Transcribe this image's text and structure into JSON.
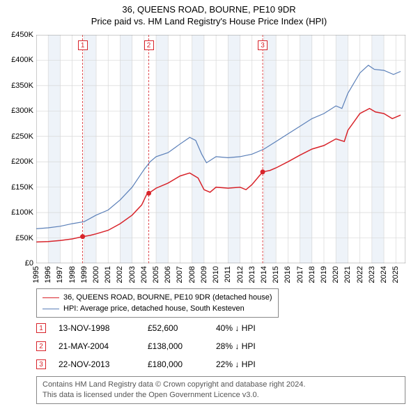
{
  "title": "36, QUEENS ROAD, BOURNE, PE10 9DR",
  "subtitle": "Price paid vs. HM Land Registry's House Price Index (HPI)",
  "chart": {
    "type": "line",
    "x_min": 1995,
    "x_max": 2025.8,
    "y_min": 0,
    "y_max": 450000,
    "y_ticks": [
      0,
      50000,
      100000,
      150000,
      200000,
      250000,
      300000,
      350000,
      400000,
      450000
    ],
    "y_tick_labels": [
      "£0",
      "£50K",
      "£100K",
      "£150K",
      "£200K",
      "£250K",
      "£300K",
      "£350K",
      "£400K",
      "£450K"
    ],
    "x_ticks": [
      1995,
      1996,
      1997,
      1998,
      1999,
      2000,
      2001,
      2002,
      2003,
      2004,
      2005,
      2006,
      2007,
      2008,
      2009,
      2010,
      2011,
      2012,
      2013,
      2014,
      2015,
      2016,
      2017,
      2018,
      2019,
      2020,
      2021,
      2022,
      2023,
      2024,
      2025
    ],
    "grid_color": "#d7d7d7",
    "shaded_color": "#eef3f9",
    "shaded_years": [
      1996,
      1999,
      2002,
      2005,
      2008,
      2011,
      2014,
      2017,
      2020,
      2023
    ],
    "background_color": "#ffffff",
    "series": [
      {
        "name": "hpi",
        "color": "#5a7fb8",
        "width": 1.2,
        "points": [
          [
            1995,
            68000
          ],
          [
            1996,
            70000
          ],
          [
            1997,
            73000
          ],
          [
            1998,
            78000
          ],
          [
            1999,
            82000
          ],
          [
            2000,
            95000
          ],
          [
            2001,
            105000
          ],
          [
            2002,
            125000
          ],
          [
            2003,
            150000
          ],
          [
            2004,
            185000
          ],
          [
            2004.5,
            200000
          ],
          [
            2005,
            210000
          ],
          [
            2006,
            218000
          ],
          [
            2007,
            235000
          ],
          [
            2007.8,
            248000
          ],
          [
            2008.3,
            242000
          ],
          [
            2008.8,
            215000
          ],
          [
            2009.2,
            198000
          ],
          [
            2010,
            210000
          ],
          [
            2011,
            208000
          ],
          [
            2012,
            210000
          ],
          [
            2013,
            215000
          ],
          [
            2014,
            225000
          ],
          [
            2015,
            240000
          ],
          [
            2016,
            255000
          ],
          [
            2017,
            270000
          ],
          [
            2018,
            285000
          ],
          [
            2019,
            295000
          ],
          [
            2020,
            310000
          ],
          [
            2020.5,
            305000
          ],
          [
            2021,
            335000
          ],
          [
            2022,
            375000
          ],
          [
            2022.7,
            390000
          ],
          [
            2023.2,
            382000
          ],
          [
            2024,
            380000
          ],
          [
            2024.8,
            372000
          ],
          [
            2025.4,
            378000
          ]
        ]
      },
      {
        "name": "property",
        "color": "#d8232a",
        "width": 1.5,
        "points": [
          [
            1995,
            42000
          ],
          [
            1996,
            43000
          ],
          [
            1997,
            45000
          ],
          [
            1998,
            48000
          ],
          [
            1998.87,
            52600
          ],
          [
            1999.5,
            55000
          ],
          [
            2000,
            58000
          ],
          [
            2001,
            65000
          ],
          [
            2002,
            78000
          ],
          [
            2003,
            95000
          ],
          [
            2003.8,
            115000
          ],
          [
            2004.2,
            135000
          ],
          [
            2004.39,
            138000
          ],
          [
            2005,
            148000
          ],
          [
            2006,
            158000
          ],
          [
            2007,
            172000
          ],
          [
            2007.8,
            178000
          ],
          [
            2008.5,
            168000
          ],
          [
            2009,
            145000
          ],
          [
            2009.5,
            140000
          ],
          [
            2010,
            150000
          ],
          [
            2011,
            148000
          ],
          [
            2012,
            150000
          ],
          [
            2012.5,
            145000
          ],
          [
            2013,
            155000
          ],
          [
            2013.6,
            172000
          ],
          [
            2013.89,
            180000
          ],
          [
            2014.5,
            183000
          ],
          [
            2015,
            188000
          ],
          [
            2016,
            200000
          ],
          [
            2017,
            213000
          ],
          [
            2018,
            225000
          ],
          [
            2019,
            232000
          ],
          [
            2020,
            245000
          ],
          [
            2020.7,
            240000
          ],
          [
            2021,
            262000
          ],
          [
            2022,
            295000
          ],
          [
            2022.8,
            305000
          ],
          [
            2023.3,
            298000
          ],
          [
            2024,
            295000
          ],
          [
            2024.7,
            285000
          ],
          [
            2025.4,
            292000
          ]
        ]
      }
    ],
    "markers": [
      {
        "n": "1",
        "x": 1998.87,
        "y": 52600,
        "color": "#d8232a"
      },
      {
        "n": "2",
        "x": 2004.39,
        "y": 138000,
        "color": "#d8232a"
      },
      {
        "n": "3",
        "x": 2013.89,
        "y": 180000,
        "color": "#d8232a"
      }
    ]
  },
  "legend": {
    "items": [
      {
        "color": "#d8232a",
        "label": "36, QUEENS ROAD, BOURNE, PE10 9DR (detached house)"
      },
      {
        "color": "#5a7fb8",
        "label": "HPI: Average price, detached house, South Kesteven"
      }
    ]
  },
  "sales": [
    {
      "n": "1",
      "date": "13-NOV-1998",
      "price": "£52,600",
      "delta": "40% ↓ HPI",
      "color": "#d8232a"
    },
    {
      "n": "2",
      "date": "21-MAY-2004",
      "price": "£138,000",
      "delta": "28% ↓ HPI",
      "color": "#d8232a"
    },
    {
      "n": "3",
      "date": "22-NOV-2013",
      "price": "£180,000",
      "delta": "22% ↓ HPI",
      "color": "#d8232a"
    }
  ],
  "footer": {
    "line1": "Contains HM Land Registry data © Crown copyright and database right 2024.",
    "line2": "This data is licensed under the Open Government Licence v3.0."
  }
}
